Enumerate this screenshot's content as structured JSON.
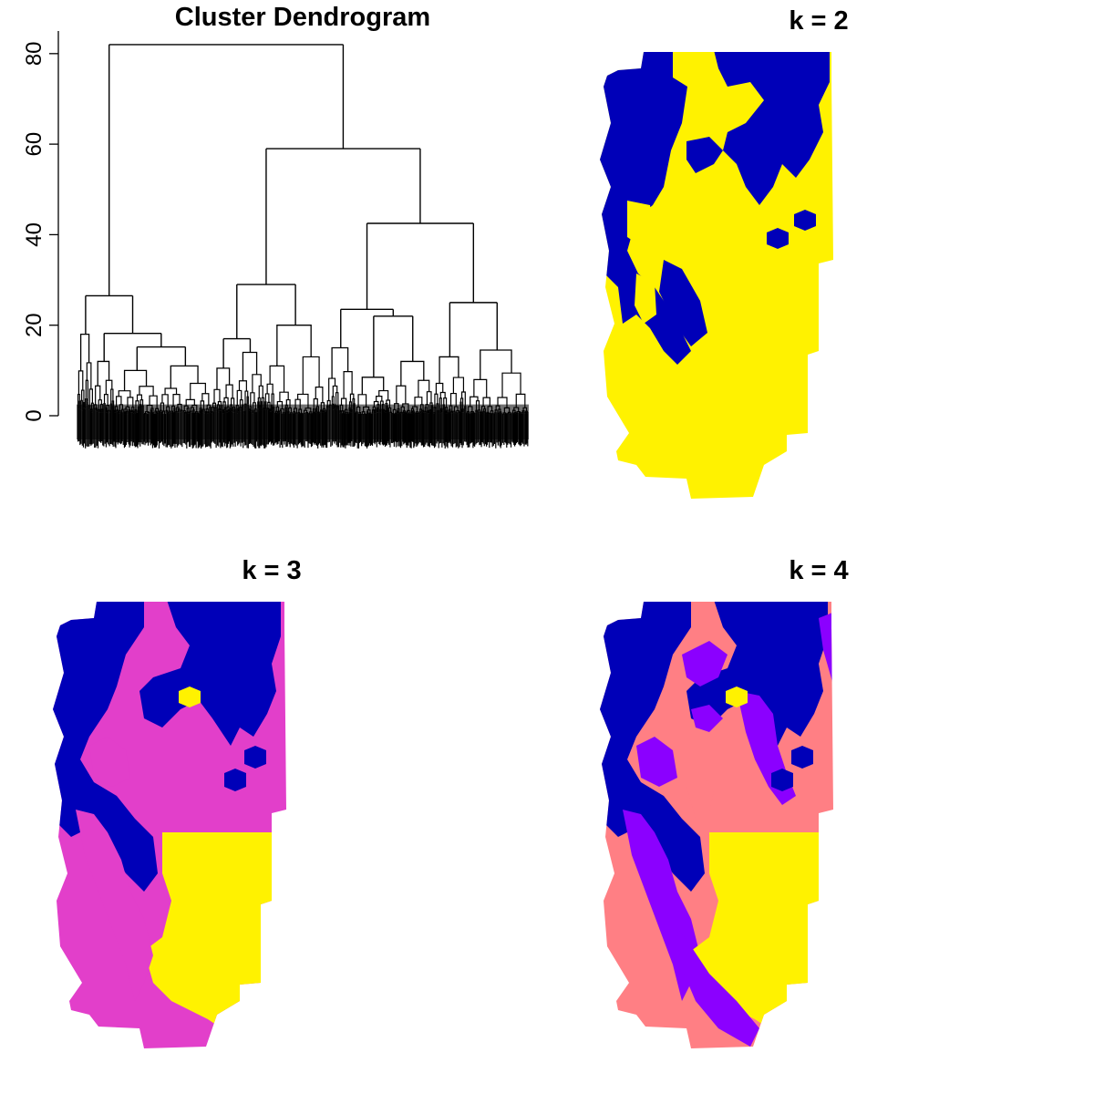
{
  "chart_data": [
    {
      "type": "dendrogram",
      "title": "Cluster Dendrogram",
      "ylim": [
        0,
        85
      ],
      "yticks": [
        0,
        20,
        40,
        60,
        80
      ],
      "grid": false,
      "tree": {
        "height": 82,
        "children": [
          {
            "height": 26.5,
            "children": [
              {
                "height": 18,
                "leaves": 8
              },
              {
                "height": 18.2,
                "children": [
                  {
                    "height": 12,
                    "leaves": 10
                  },
                  {
                    "height": 15.2,
                    "children": [
                      {
                        "height": 10,
                        "leaves": 22
                      },
                      {
                        "height": 11,
                        "leaves": 25
                      }
                    ]
                  }
                ]
              }
            ]
          },
          {
            "height": 59,
            "children": [
              {
                "height": 29,
                "children": [
                  {
                    "height": 17,
                    "children": [
                      {
                        "height": 10.5,
                        "leaves": 12
                      },
                      {
                        "height": 14,
                        "leaves": 14
                      }
                    ]
                  },
                  {
                    "height": 20,
                    "leaves": 30
                  }
                ]
              },
              {
                "height": 42.5,
                "children": [
                  {
                    "height": 23.5,
                    "children": [
                      {
                        "height": 15,
                        "leaves": 14
                      },
                      {
                        "height": 22,
                        "children": [
                          {
                            "height": 8.5,
                            "leaves": 18
                          },
                          {
                            "height": 12,
                            "leaves": 20
                          }
                        ]
                      }
                    ]
                  },
                  {
                    "height": 25,
                    "children": [
                      {
                        "height": 13,
                        "leaves": 16
                      },
                      {
                        "height": 14.5,
                        "leaves": 30
                      }
                    ]
                  }
                ]
              }
            ]
          }
        ]
      }
    },
    {
      "type": "heatmap",
      "title": "k = 2",
      "clusters": 2,
      "colors": [
        "#0000b8",
        "#fff200"
      ]
    },
    {
      "type": "heatmap",
      "title": "k = 3",
      "clusters": 3,
      "colors": [
        "#0000b8",
        "#e23fca",
        "#fff200"
      ]
    },
    {
      "type": "heatmap",
      "title": "k = 4",
      "clusters": 4,
      "colors": [
        "#0000b8",
        "#8b00ff",
        "#ff7f84",
        "#fff200"
      ]
    }
  ]
}
